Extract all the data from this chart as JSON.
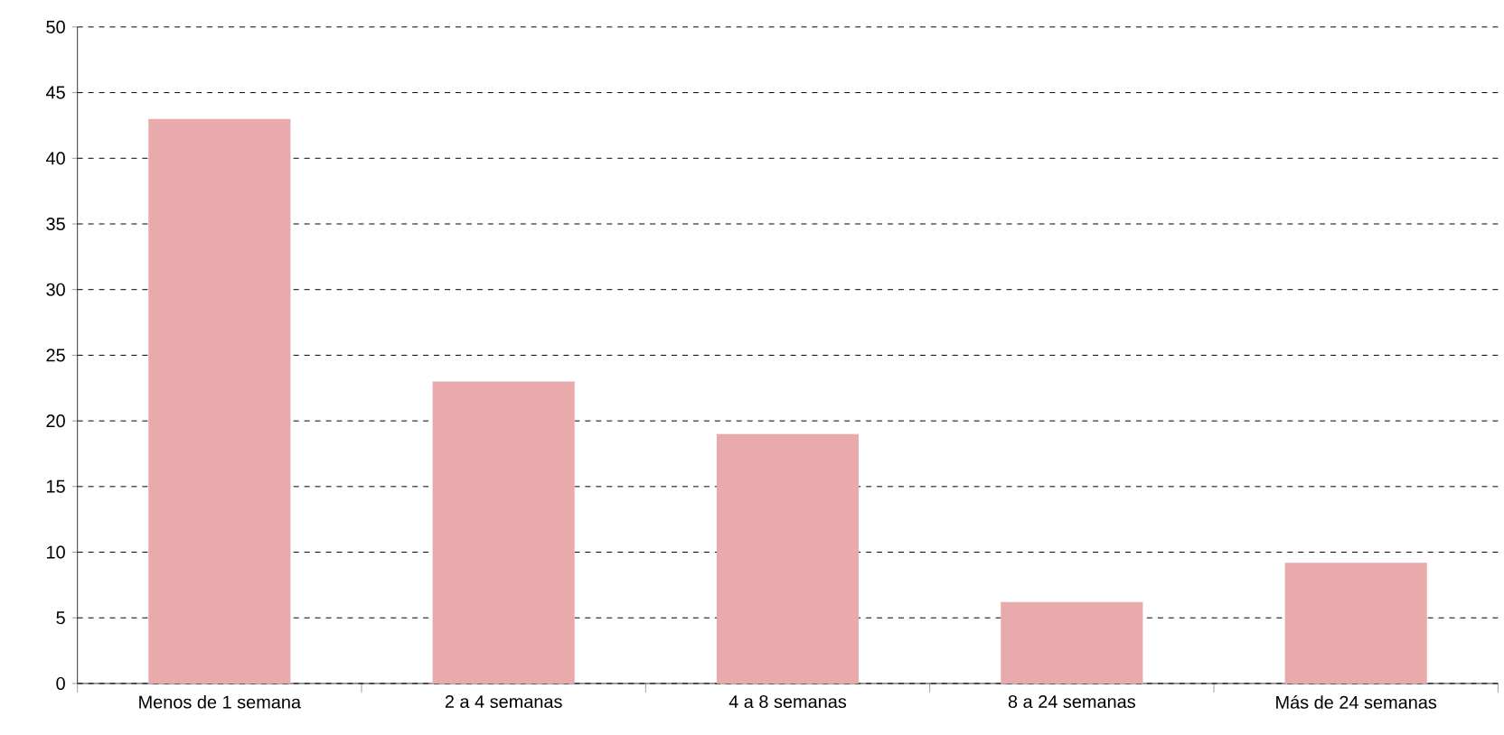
{
  "chart_data": {
    "type": "bar",
    "categories": [
      "Menos de 1 semana",
      "2 a 4 semanas",
      "4 a 8 semanas",
      "8 a 24 semanas",
      "Más de 24 semanas"
    ],
    "values": [
      43,
      23,
      19,
      6.2,
      9.2
    ],
    "color": "#e8aaab",
    "ylim": [
      0,
      50
    ],
    "yticks": [
      0,
      5,
      10,
      15,
      20,
      25,
      30,
      35,
      40,
      45,
      50
    ],
    "grid": "y"
  }
}
